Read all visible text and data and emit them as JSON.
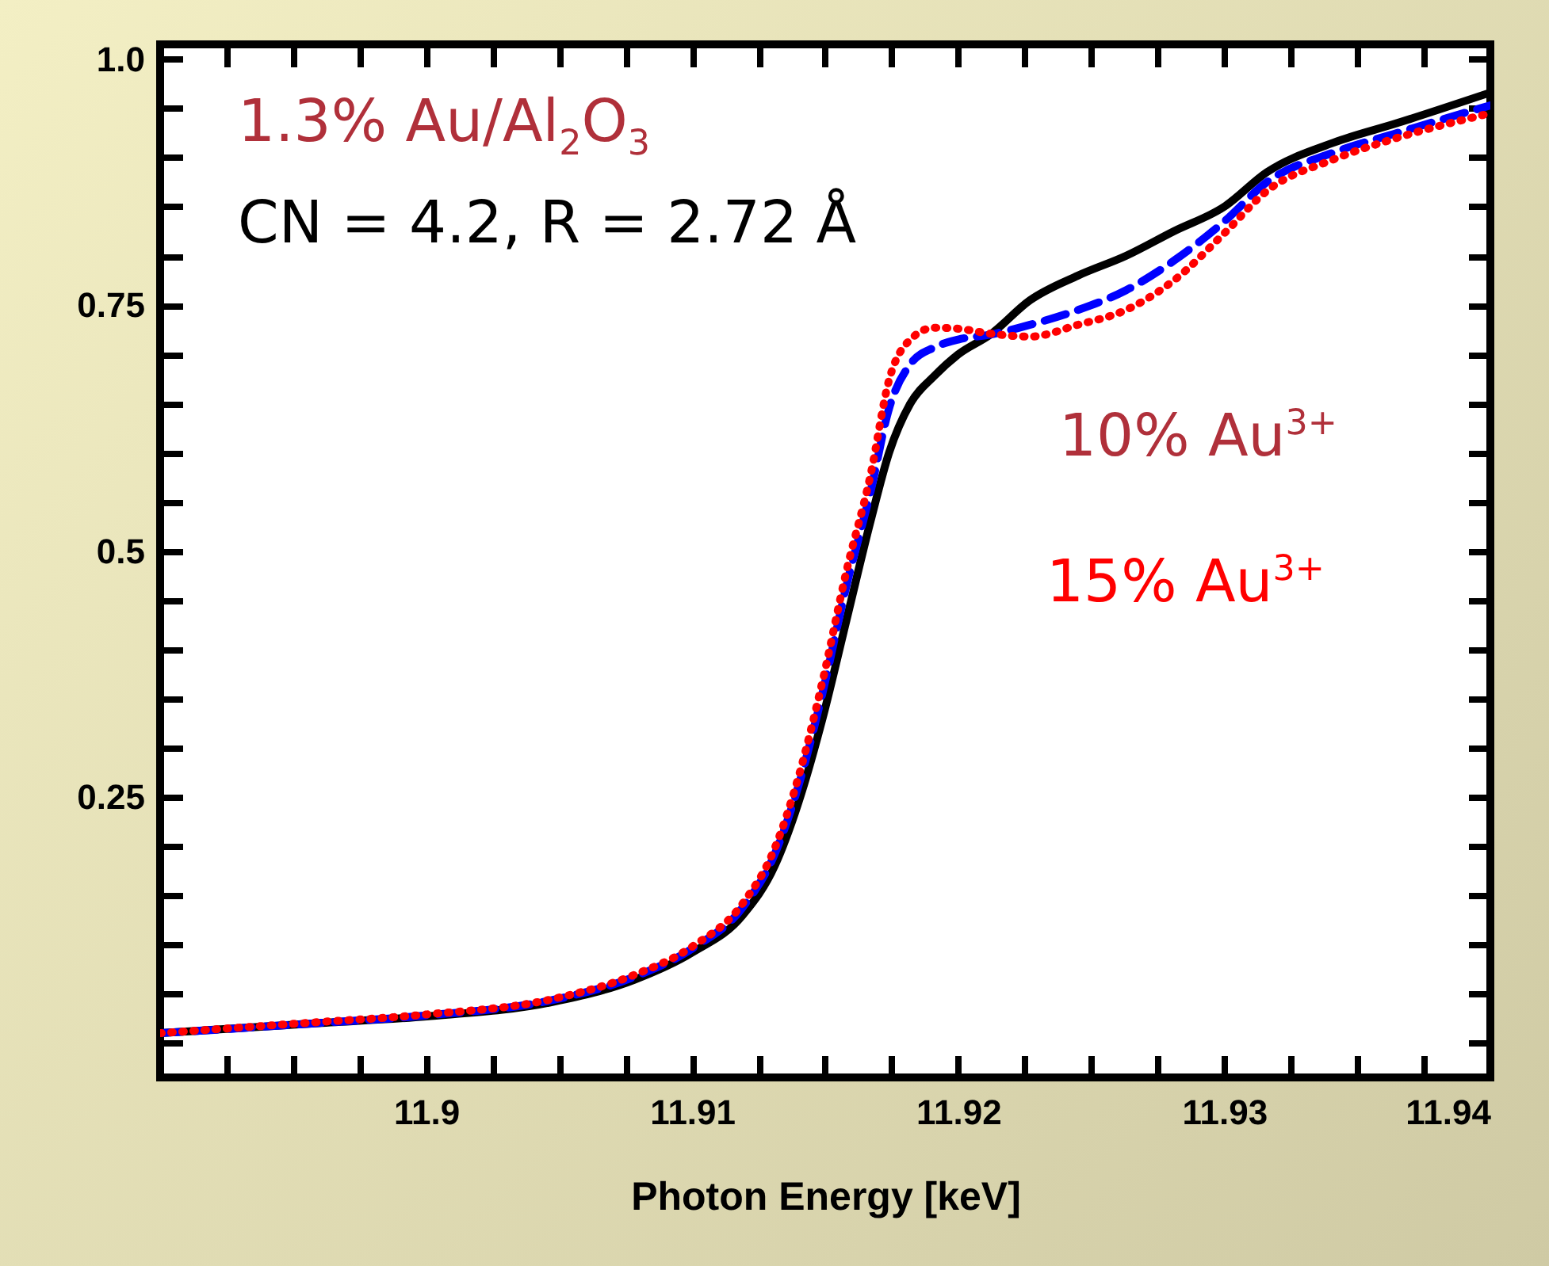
{
  "chart_data": {
    "type": "line",
    "xlabel": "Photon Energy [keV]",
    "annotations": [
      "1.3% Au/Al$_{2}$O$_{3}$",
      "CN = 4.2, R = 2.72 Å",
      "10% Au$^{3+}$",
      "15% Au$^{3+}$"
    ],
    "x": [
      11.89,
      11.8958,
      11.9,
      11.9048,
      11.9078,
      11.91,
      11.9119,
      11.9131,
      11.914,
      11.9149,
      11.9158,
      11.9167,
      11.9174,
      11.9182,
      11.9191,
      11.92,
      11.9212,
      11.9227,
      11.9245,
      11.9263,
      11.9281,
      11.93,
      11.9316,
      11.9341,
      11.9365,
      11.94
    ],
    "series": [
      {
        "color": "#000000",
        "line_style": "solid",
        "values": [
          0.01,
          0.02,
          0.027,
          0.042,
          0.064,
          0.092,
          0.13,
          0.18,
          0.245,
          0.33,
          0.43,
          0.53,
          0.6,
          0.65,
          0.678,
          0.7,
          0.72,
          0.755,
          0.78,
          0.8,
          0.825,
          0.85,
          0.885,
          0.915,
          0.935,
          0.966
        ]
      },
      {
        "color": "#0000ff",
        "line_style": "dashed",
        "values": [
          0.01,
          0.02,
          0.028,
          0.044,
          0.067,
          0.096,
          0.138,
          0.192,
          0.262,
          0.356,
          0.465,
          0.56,
          0.645,
          0.69,
          0.707,
          0.715,
          0.72,
          0.73,
          0.745,
          0.765,
          0.795,
          0.835,
          0.875,
          0.905,
          0.925,
          0.953
        ]
      },
      {
        "color": "#ff0000",
        "line_style": "dotted",
        "values": [
          0.01,
          0.021,
          0.029,
          0.045,
          0.069,
          0.098,
          0.142,
          0.198,
          0.271,
          0.368,
          0.48,
          0.577,
          0.674,
          0.715,
          0.727,
          0.726,
          0.721,
          0.718,
          0.73,
          0.745,
          0.775,
          0.823,
          0.866,
          0.898,
          0.92,
          0.945
        ]
      }
    ],
    "xlim": [
      11.89,
      11.94
    ],
    "xticks": [
      {
        "value": 11.8925,
        "label": null
      },
      {
        "value": 11.895,
        "label": null
      },
      {
        "value": 11.8975,
        "label": null
      },
      {
        "value": 11.9,
        "label": "11.9"
      },
      {
        "value": 11.9025,
        "label": null
      },
      {
        "value": 11.905,
        "label": null
      },
      {
        "value": 11.9075,
        "label": null
      },
      11.91,
      {
        "value": 11.9125,
        "label": null
      },
      {
        "value": 11.915,
        "label": null
      },
      {
        "value": 11.9175,
        "label": null
      },
      11.92,
      {
        "value": 11.9225,
        "label": null
      },
      {
        "value": 11.925,
        "label": null
      },
      {
        "value": 11.9275,
        "label": null
      },
      11.93,
      {
        "value": 11.9325,
        "label": null
      },
      {
        "value": 11.935,
        "label": null
      },
      {
        "value": 11.9375,
        "label": null
      },
      11.94
    ],
    "ylim": [
      -0.035,
      1.015
    ],
    "yticks": [
      {
        "value": 0,
        "label": null
      },
      {
        "value": 0.05,
        "label": null
      },
      {
        "value": 0.1,
        "label": null
      },
      {
        "value": 0.15,
        "label": null
      },
      {
        "value": 0.2,
        "label": null
      },
      0.25,
      {
        "value": 0.3,
        "label": null
      },
      {
        "value": 0.35,
        "label": null
      },
      {
        "value": 0.4,
        "label": null
      },
      {
        "value": 0.45,
        "label": null
      },
      0.5,
      {
        "value": 0.55,
        "label": null
      },
      {
        "value": 0.6,
        "label": null
      },
      {
        "value": 0.65,
        "label": null
      },
      {
        "value": 0.7,
        "label": null
      },
      0.75,
      {
        "value": 0.8,
        "label": null
      },
      {
        "value": 0.85,
        "label": null
      },
      {
        "value": 0.9,
        "label": null
      },
      {
        "value": 0.95,
        "label": null
      },
      {
        "value": 1,
        "label": "1.0"
      }
    ],
    "grid": false
  }
}
